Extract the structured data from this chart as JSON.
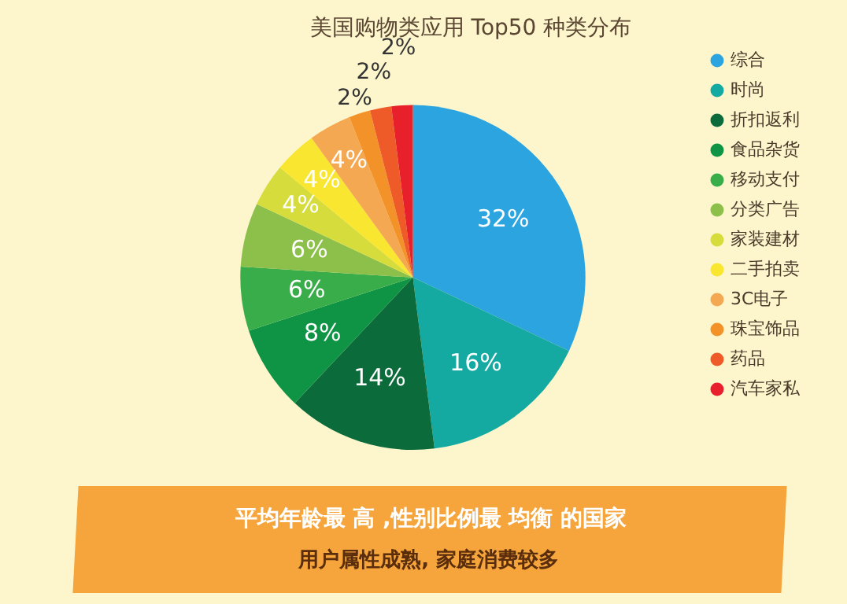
{
  "chart_data": {
    "type": "pie",
    "title": "美国购物类应用 Top50 种类分布",
    "categories": [
      "综合",
      "时尚",
      "折扣返利",
      "食品杂货",
      "移动支付",
      "分类广告",
      "家装建材",
      "二手拍卖",
      "3C电子",
      "珠宝饰品",
      "药品",
      "汽车家私"
    ],
    "values": [
      32,
      16,
      14,
      8,
      6,
      6,
      4,
      4,
      4,
      2,
      2,
      2
    ],
    "value_labels": [
      "32%",
      "16%",
      "14%",
      "8%",
      "6%",
      "6%",
      "4%",
      "4%",
      "4%",
      "2%",
      "2%",
      "2%"
    ],
    "colors": [
      "#2ba4e0",
      "#14aaa2",
      "#0b6b3b",
      "#0f9445",
      "#3aad4b",
      "#8cc04b",
      "#d5dc3b",
      "#f8e631",
      "#f5a852",
      "#f39228",
      "#ef5a29",
      "#e8202b"
    ],
    "legend": "right",
    "annotations": [
      "平均年龄最 高 ,性别比例最 均衡 的国家",
      "用户属性成熟, 家庭消费较多"
    ]
  }
}
